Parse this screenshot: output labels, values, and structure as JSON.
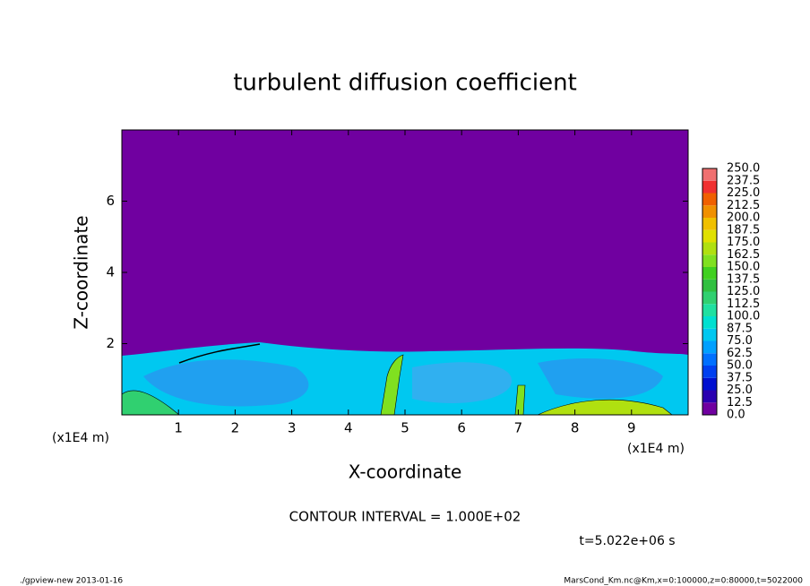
{
  "chart_data": {
    "type": "contour",
    "title": "turbulent diffusion coefficient",
    "xlabel": "X-coordinate",
    "ylabel": "Z-coordinate",
    "xunit": "(x1E4 m)",
    "yunit": "(x1E4 m)",
    "xlim": [
      0,
      10
    ],
    "ylim": [
      0,
      8
    ],
    "xticks": [
      1,
      2,
      3,
      4,
      5,
      6,
      7,
      8,
      9
    ],
    "yticks": [
      2,
      4,
      6
    ],
    "colorbar": {
      "levels": [
        {
          "value": 0,
          "label": "0.0"
        },
        {
          "value": 12.5,
          "label": "12.5"
        },
        {
          "value": 25,
          "label": "25.0"
        },
        {
          "value": 37.5,
          "label": "37.5"
        },
        {
          "value": 50,
          "label": "50.0"
        },
        {
          "value": 62.5,
          "label": "62.5"
        },
        {
          "value": 75,
          "label": "75.0"
        },
        {
          "value": 87.5,
          "label": "87.5"
        },
        {
          "value": 100,
          "label": "100.0"
        },
        {
          "value": 112.5,
          "label": "112.5"
        },
        {
          "value": 125,
          "label": "125.0"
        },
        {
          "value": 137.5,
          "label": "137.5"
        },
        {
          "value": 150,
          "label": "150.0"
        },
        {
          "value": 162.5,
          "label": "162.5"
        },
        {
          "value": 175,
          "label": "175.0"
        },
        {
          "value": 187.5,
          "label": "187.5"
        },
        {
          "value": 200,
          "label": "200.0"
        },
        {
          "value": 212.5,
          "label": "212.5"
        },
        {
          "value": 225,
          "label": "225.0"
        },
        {
          "value": 237.5,
          "label": "237.5"
        },
        {
          "value": 250,
          "label": "250.0"
        }
      ],
      "colors": [
        "#7000a0",
        "#2a00b0",
        "#0010d0",
        "#0040f0",
        "#0070ff",
        "#00a0ff",
        "#00c8f0",
        "#00e0d0",
        "#20e0a0",
        "#30d070",
        "#30c040",
        "#40d020",
        "#80e020",
        "#b0e010",
        "#e0e000",
        "#f0c000",
        "#f09000",
        "#f06000",
        "#f03030",
        "#f07070"
      ]
    },
    "contour_interval": "CONTOUR INTERVAL = 1.000E+02",
    "time": "t=5.022e+06 s",
    "footer_left": "./gpview-new  2013-01-16",
    "footer_right": "MarsCond_Km.nc@Km,x=0:100000,z=0:80000,t=5022000"
  }
}
